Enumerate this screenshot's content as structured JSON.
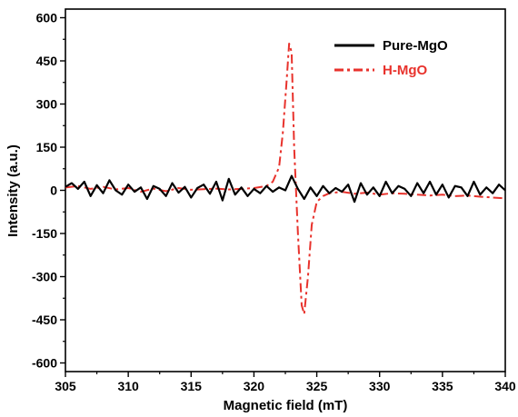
{
  "chart_data": {
    "type": "line",
    "title": "",
    "xlabel": "Magnetic field (mT)",
    "ylabel": "Intensity (a.u.)",
    "xlim": [
      305,
      340
    ],
    "ylim": [
      -630,
      630
    ],
    "xticks": [
      305,
      310,
      315,
      320,
      325,
      330,
      335,
      340
    ],
    "yticks": [
      600,
      450,
      300,
      150,
      0,
      -150,
      -300,
      -450,
      -600
    ],
    "grid": false,
    "legend_position": "top-right",
    "series": [
      {
        "name": "Pure-MgO",
        "color": "#000000",
        "style": "solid",
        "x": [
          305,
          305.5,
          306,
          306.5,
          307,
          307.5,
          308,
          308.5,
          309,
          309.5,
          310,
          310.5,
          311,
          311.5,
          312,
          312.5,
          313,
          313.5,
          314,
          314.5,
          315,
          315.5,
          316,
          316.5,
          317,
          317.5,
          318,
          318.5,
          319,
          319.5,
          320,
          320.5,
          321,
          321.5,
          322,
          322.5,
          323,
          323.5,
          324,
          324.5,
          325,
          325.5,
          326,
          326.5,
          327,
          327.5,
          328,
          328.5,
          329,
          329.5,
          330,
          330.5,
          331,
          331.5,
          332,
          332.5,
          333,
          333.5,
          334,
          334.5,
          335,
          335.5,
          336,
          336.5,
          337,
          337.5,
          338,
          338.5,
          339,
          339.5,
          340
        ],
        "values": [
          12,
          25,
          5,
          30,
          -20,
          18,
          -10,
          35,
          0,
          -15,
          20,
          -5,
          10,
          -30,
          15,
          5,
          -20,
          25,
          -8,
          12,
          -25,
          8,
          20,
          -12,
          30,
          -35,
          40,
          -15,
          10,
          -20,
          5,
          -10,
          15,
          -5,
          10,
          0,
          50,
          5,
          -30,
          10,
          -20,
          15,
          -10,
          8,
          -5,
          20,
          -40,
          25,
          -15,
          10,
          -20,
          30,
          -10,
          15,
          5,
          -20,
          25,
          -10,
          30,
          -15,
          20,
          -25,
          15,
          10,
          -20,
          30,
          -15,
          10,
          -10,
          20,
          0
        ]
      },
      {
        "name": "H-MgO",
        "color": "#e8322c",
        "style": "dashdot",
        "x": [
          305,
          306,
          307,
          308,
          309,
          310,
          311,
          312,
          313,
          314,
          315,
          316,
          317,
          318,
          319,
          320,
          321,
          321.5,
          322,
          322.3,
          322.6,
          322.8,
          323,
          323.2,
          323.5,
          323.8,
          324,
          324.3,
          324.6,
          325,
          325.5,
          326,
          327,
          328,
          329,
          330,
          331,
          332,
          333,
          334,
          335,
          336,
          337,
          338,
          339,
          340
        ],
        "values": [
          10,
          15,
          5,
          12,
          3,
          8,
          -5,
          6,
          -3,
          8,
          2,
          4,
          6,
          3,
          5,
          8,
          15,
          30,
          80,
          200,
          380,
          510,
          480,
          150,
          -150,
          -400,
          -430,
          -300,
          -120,
          -40,
          -20,
          -10,
          -5,
          -12,
          -8,
          -15,
          -10,
          -12,
          -15,
          -18,
          -15,
          -20,
          -18,
          -22,
          -25,
          -28
        ]
      }
    ]
  }
}
